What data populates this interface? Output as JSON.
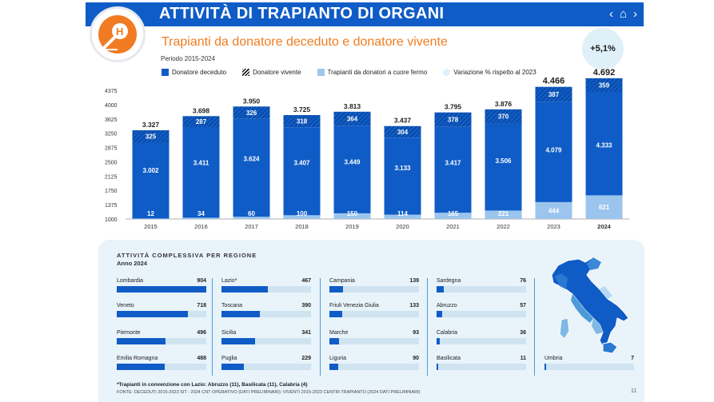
{
  "header": {
    "title": "ATTIVITÀ DI TRAPIANTO DI ORGANI",
    "nav_back": "‹",
    "nav_home": "⌂",
    "nav_forward": "›"
  },
  "subtitle": "Trapianti da donatore deceduto e donatore vivente",
  "period": "Periodo 2015-2024",
  "legend": {
    "deceased": "Donatore deceduto",
    "living": "Donatore vivente",
    "dcd": "Trapianti da donatori a cuore fermo",
    "variation": "Variazione % rispetto al 2023"
  },
  "variation_value": "+5,1%",
  "colors": {
    "blue": "#0f5cc7",
    "light_blue": "#9cc5ee",
    "orange": "#ef7d22",
    "pale": "#dff0f8"
  },
  "chart_data": {
    "type": "bar",
    "categories": [
      "2015",
      "2016",
      "2017",
      "2018",
      "2019",
      "2020",
      "2021",
      "2022",
      "2023",
      "2024"
    ],
    "ylim": [
      1000,
      4375
    ],
    "yticks": [
      1000,
      1375,
      1750,
      2125,
      2500,
      2875,
      3250,
      3625,
      4000,
      4375
    ],
    "series": [
      {
        "name": "Donatore deceduto",
        "values": [
          3002,
          3411,
          3624,
          3407,
          3449,
          3133,
          3417,
          3506,
          4079,
          4333
        ]
      },
      {
        "name": "Donatore vivente",
        "values": [
          325,
          287,
          326,
          318,
          364,
          304,
          378,
          370,
          387,
          359
        ]
      },
      {
        "name": "Trapianti da donatori a cuore fermo",
        "values": [
          12,
          34,
          60,
          100,
          150,
          114,
          165,
          221,
          444,
          621
        ]
      }
    ],
    "totals": [
      3327,
      3698,
      3950,
      3725,
      3813,
      3437,
      3795,
      3876,
      4466,
      4692
    ],
    "total_labels": [
      "3.327",
      "3.698",
      "3.950",
      "3.725",
      "3.813",
      "3.437",
      "3.795",
      "3.876",
      "4.466",
      "4.692"
    ],
    "deceased_labels": [
      "3.002",
      "3.411",
      "3.624",
      "3.407",
      "3.449",
      "3.133",
      "3.417",
      "3.506",
      "4.079",
      "4.333"
    ],
    "living_labels": [
      "325",
      "287",
      "326",
      "318",
      "364",
      "304",
      "378",
      "370",
      "387",
      "359"
    ],
    "dcd_labels": [
      "12",
      "34",
      "60",
      "100",
      "150",
      "114",
      "165",
      "221",
      "444",
      "621"
    ]
  },
  "regions_panel": {
    "title": "ATTIVITÀ COMPLESSIVA PER REGIONE",
    "subtitle": "Anno 2024",
    "max": 904,
    "regions": [
      {
        "name": "Lombardia",
        "value": "904",
        "n": 904
      },
      {
        "name": "Veneto",
        "value": "718",
        "n": 718
      },
      {
        "name": "Piemonte",
        "value": "496",
        "n": 496
      },
      {
        "name": "Emilia Romagna",
        "value": "488",
        "n": 488
      },
      {
        "name": "Lazio*",
        "value": "467",
        "n": 467
      },
      {
        "name": "Toscana",
        "value": "390",
        "n": 390
      },
      {
        "name": "Sicilia",
        "value": "341",
        "n": 341
      },
      {
        "name": "Puglia",
        "value": "229",
        "n": 229
      },
      {
        "name": "Campania",
        "value": "139",
        "n": 139
      },
      {
        "name": "Friuli Venezia Giulia",
        "value": "133",
        "n": 133
      },
      {
        "name": "Marche",
        "value": "93",
        "n": 93
      },
      {
        "name": "Liguria",
        "value": "90",
        "n": 90
      },
      {
        "name": "Sardegna",
        "value": "76",
        "n": 76
      },
      {
        "name": "Abruzzo",
        "value": "57",
        "n": 57
      },
      {
        "name": "Calabria",
        "value": "36",
        "n": 36
      },
      {
        "name": "Basilicata",
        "value": "11",
        "n": 11
      },
      {
        "name": "Umbria",
        "value": "7",
        "n": 7
      }
    ]
  },
  "footnote": "*Trapianti in convenzione con Lazio: Abruzzo (11), Basilicata (11), Calabria (4)",
  "source": "FONTE: DECEDUTI 2015-2023 SIT - 2024 CNT OPERATIVO (DATI PRELIMINARI); VIVENTI 2015-2023 CENTRI TRAPIANTO (2024 DATI PRELIMINARI)",
  "page_number": "11"
}
